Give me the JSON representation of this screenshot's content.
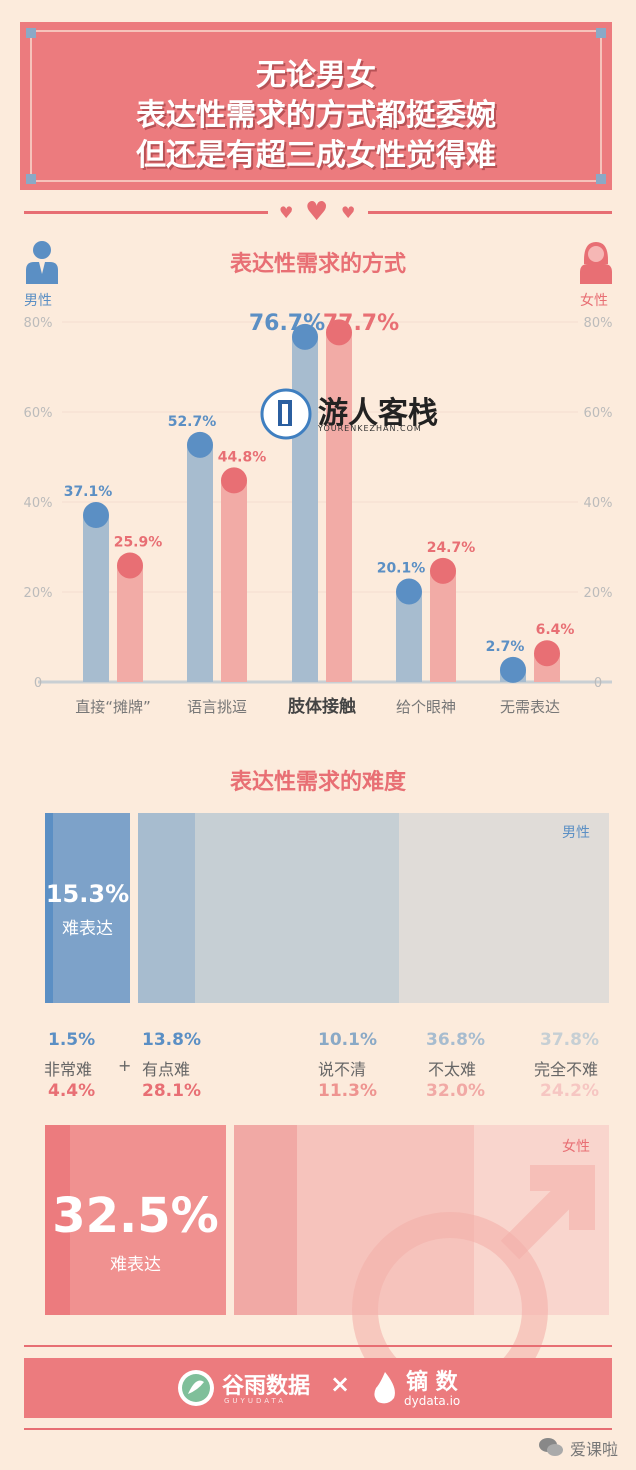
{
  "header": {
    "line1": "无论男女",
    "line2": "表达性需求的方式都挺委婉",
    "line3": "但还是有超三成女性觉得难"
  },
  "section1_title": "表达性需求的方式",
  "section2_title": "表达性需求的难度",
  "male_label": "男性",
  "female_label": "女性",
  "watermark": {
    "name": "游人客栈",
    "url": "YOURENKEZHAN.COM"
  },
  "colors": {
    "male": "#5b8fc4",
    "male_bar": "#a7bccf",
    "female": "#e86f74",
    "female_bar": "#f2aba6",
    "bg": "#fcebdc"
  },
  "chart_data": {
    "type": "bar",
    "categories": [
      "直接“摊牌”",
      "语言挑逗",
      "肢体接触",
      "给个眼神",
      "无需表达"
    ],
    "series": [
      {
        "name": "男性",
        "values": [
          37.1,
          52.7,
          76.7,
          20.1,
          2.7
        ],
        "labels": [
          "37.1%",
          "52.7%",
          "76.7%",
          "20.1%",
          "2.7%"
        ]
      },
      {
        "name": "女性",
        "values": [
          25.9,
          44.8,
          77.7,
          24.7,
          6.4
        ],
        "labels": [
          "25.9%",
          "44.8%",
          "77.7%",
          "24.7%",
          "6.4%"
        ]
      }
    ],
    "yticks": [
      "0",
      "20%",
      "40%",
      "60%",
      "80%"
    ],
    "ylim": [
      0,
      80
    ]
  },
  "difficulty": {
    "categories": [
      "非常难",
      "有点难",
      "说不清",
      "不太难",
      "完全不难"
    ],
    "plus": "+",
    "male": {
      "values": [
        "1.5%",
        "13.8%",
        "10.1%",
        "36.8%",
        "37.8%"
      ],
      "shares": [
        1.5,
        13.8,
        10.1,
        36.8,
        37.8
      ],
      "hard_total": "15.3%",
      "hard_label": "难表达"
    },
    "female": {
      "values": [
        "4.4%",
        "28.1%",
        "11.3%",
        "32.0%",
        "24.2%"
      ],
      "shares": [
        4.4,
        28.1,
        11.3,
        32.0,
        24.2
      ],
      "hard_total": "32.5%",
      "hard_label": "难表达"
    }
  },
  "footer": {
    "brand1": "谷雨数据",
    "brand1_sub": "GUYUDATA",
    "times": "×",
    "brand2": "镝 数",
    "brand2_sub": "dydata.io"
  },
  "corner_watermark": "爱课啦"
}
